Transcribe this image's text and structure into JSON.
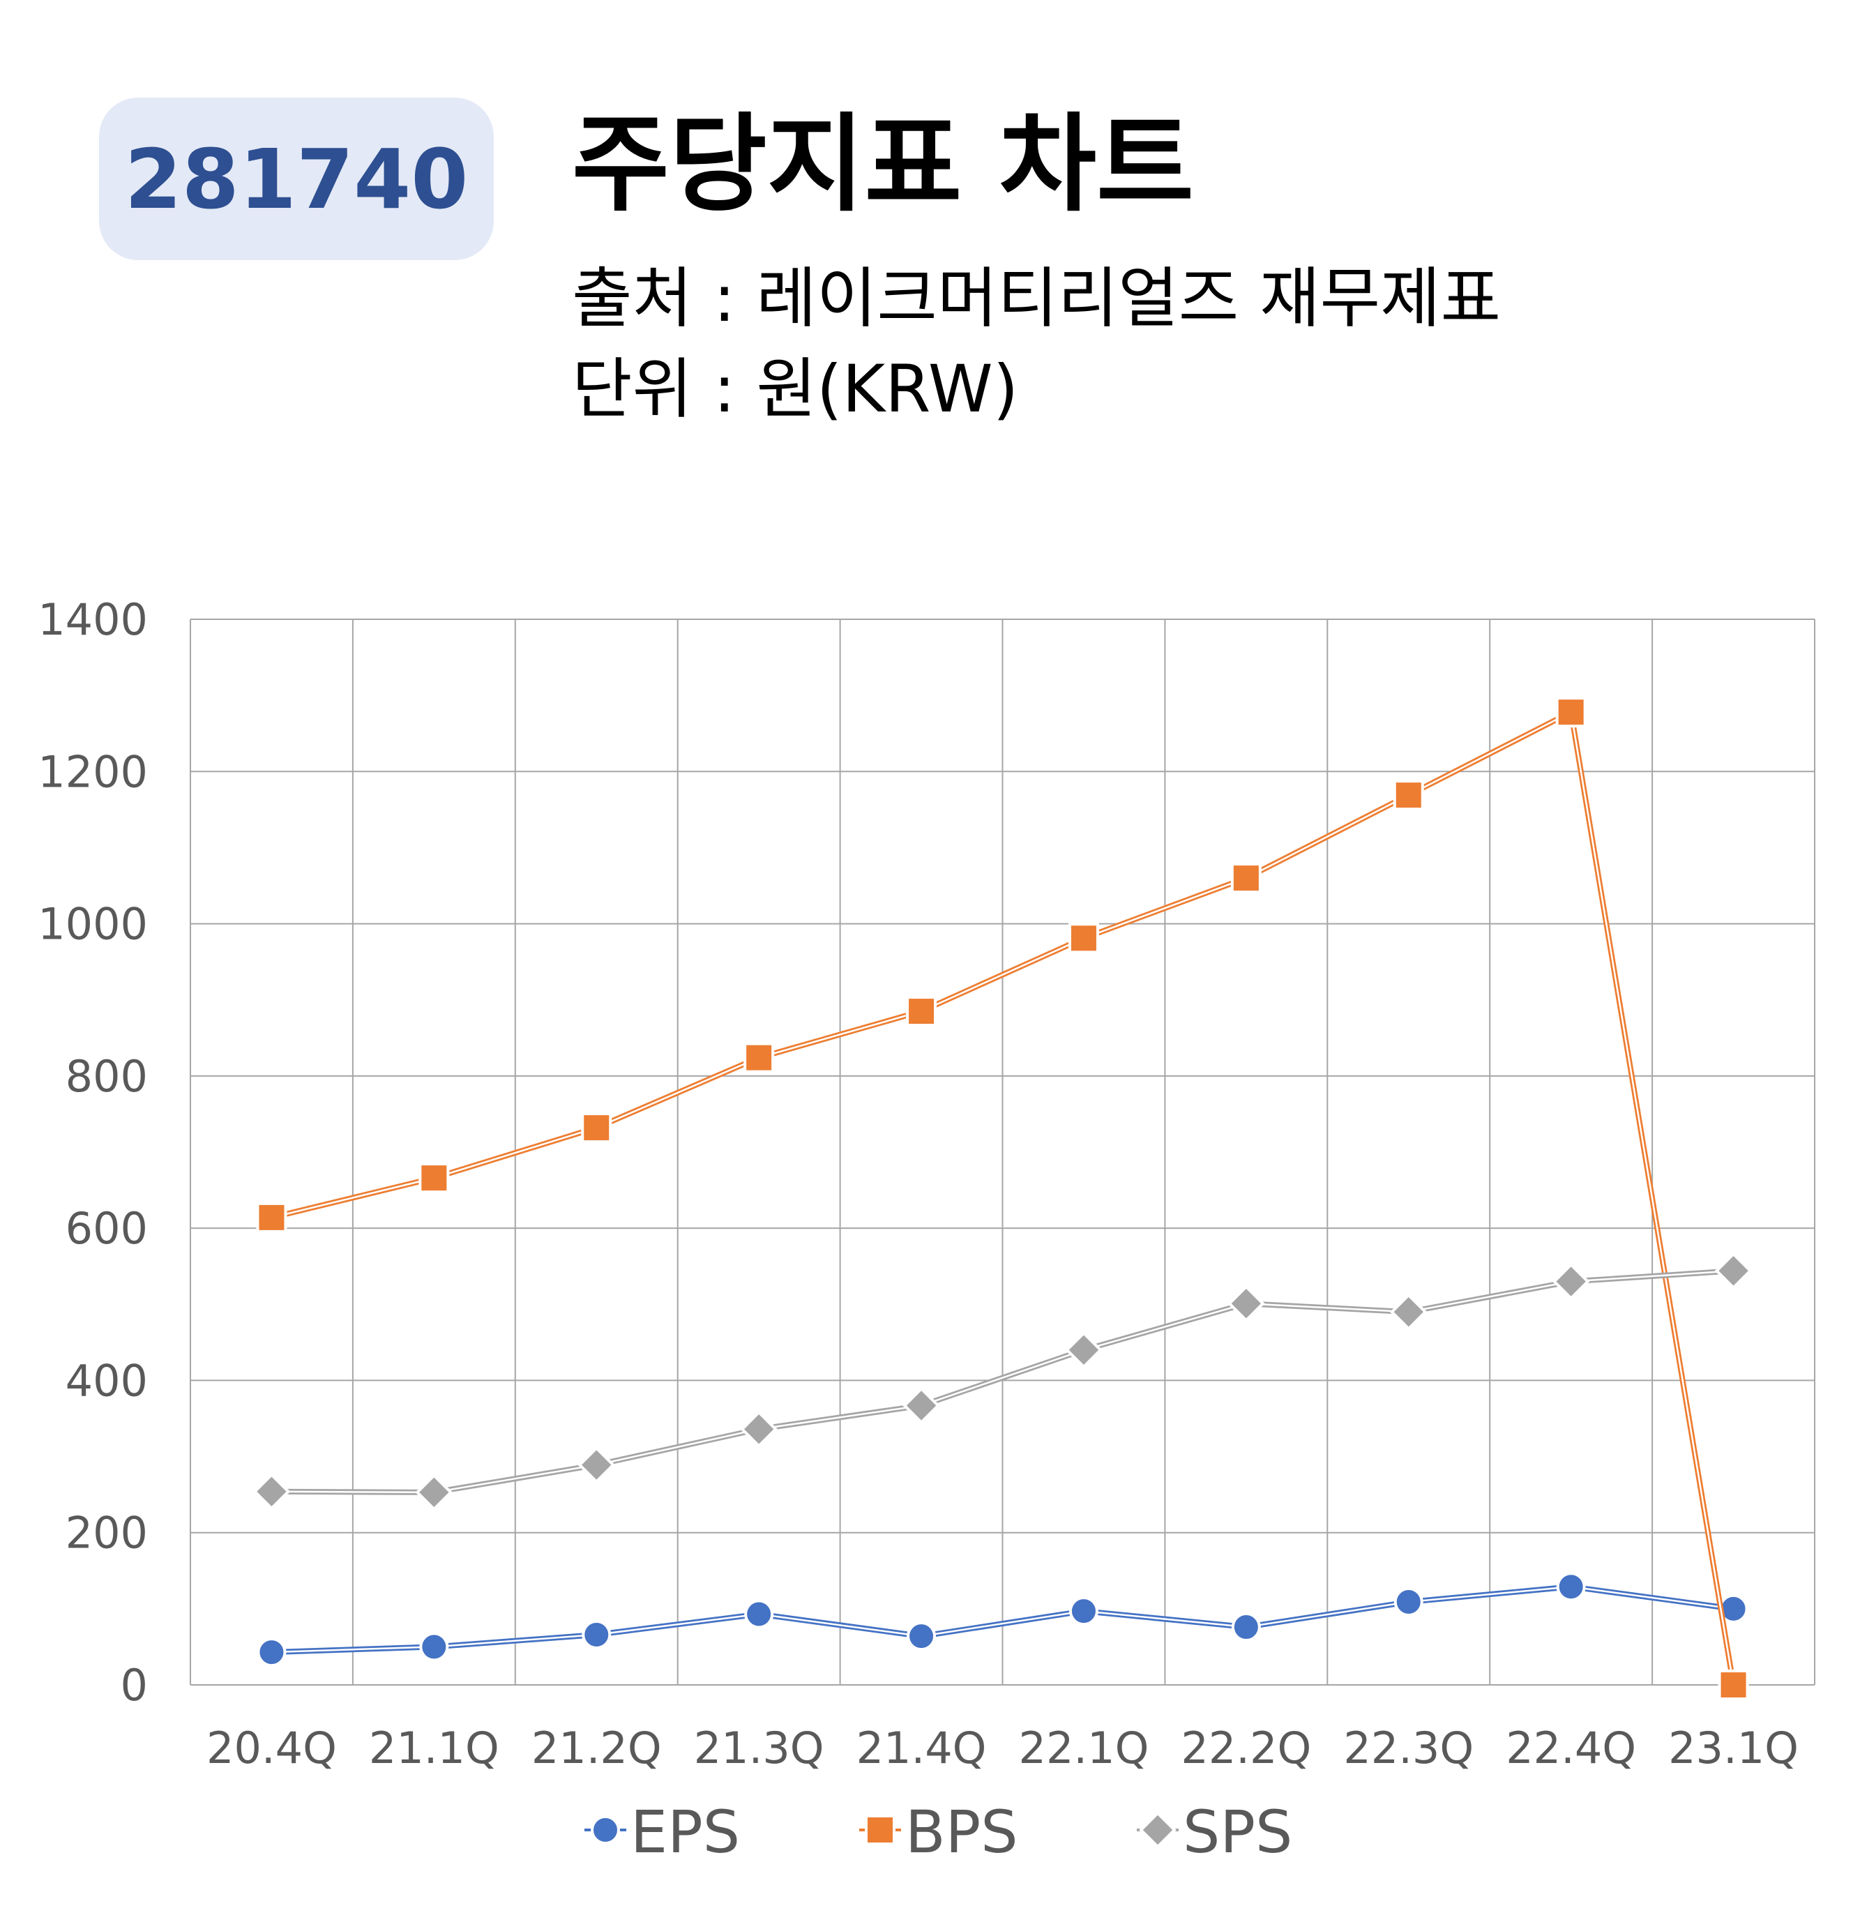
{
  "header": {
    "code": "281740",
    "title": "주당지표 차트",
    "source_line": "출처 : 레이크머티리얼즈 재무제표",
    "unit_line": "단위 : 원(KRW)"
  },
  "chart_data": {
    "type": "line",
    "categories": [
      "20.4Q",
      "21.1Q",
      "21.2Q",
      "21.3Q",
      "21.4Q",
      "22.1Q",
      "22.2Q",
      "22.3Q",
      "22.4Q",
      "23.1Q"
    ],
    "ylim": [
      0,
      1400
    ],
    "yticks": [
      0,
      200,
      400,
      600,
      800,
      1000,
      1200,
      1400
    ],
    "grid": true,
    "legend_position": "bottom",
    "series": [
      {
        "name": "EPS",
        "marker": "circle",
        "color": "#4472c4",
        "values": [
          43,
          50,
          66,
          93,
          64,
          97,
          76,
          109,
          129,
          100
        ]
      },
      {
        "name": "BPS",
        "marker": "square",
        "color": "#ed7d31",
        "values": [
          614,
          666,
          732,
          824,
          885,
          981,
          1060,
          1169,
          1278,
          0
        ]
      },
      {
        "name": "SPS",
        "marker": "diamond",
        "color": "#a5a5a5",
        "values": [
          254,
          253,
          289,
          336,
          367,
          440,
          501,
          490,
          530,
          544
        ]
      }
    ]
  }
}
